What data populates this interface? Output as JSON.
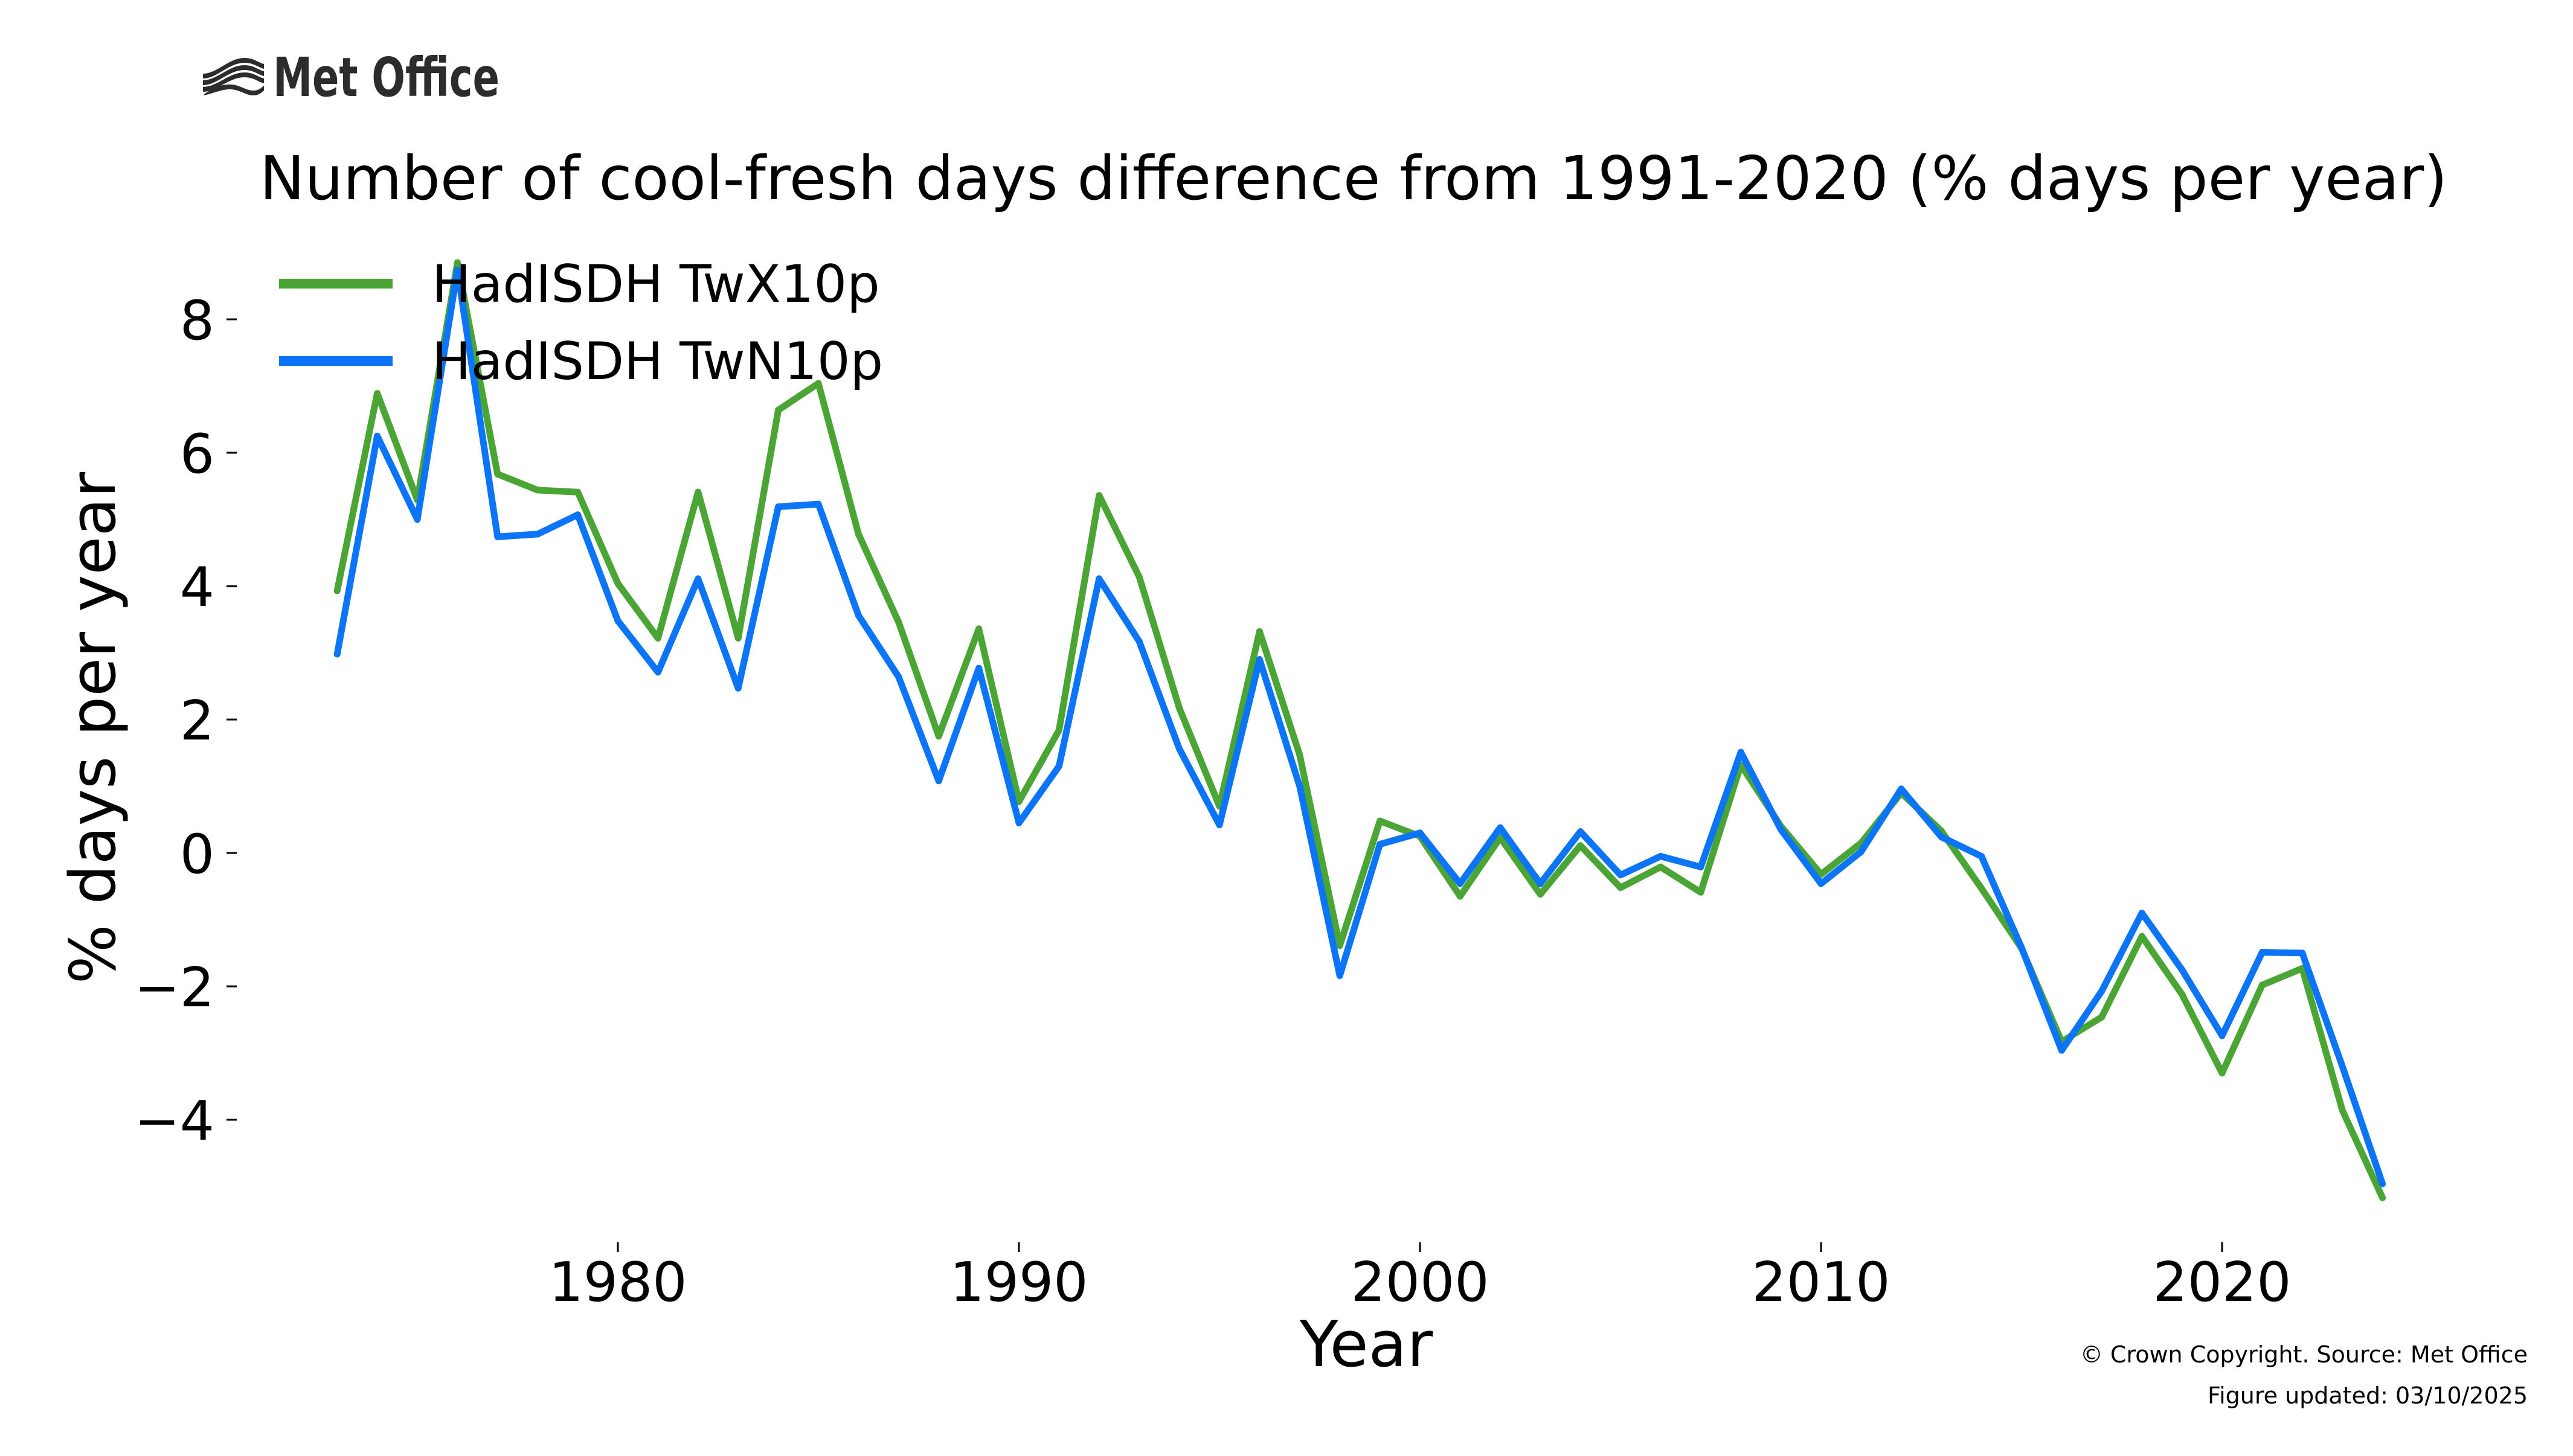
{
  "logo": {
    "text": "Met Office"
  },
  "footer": {
    "copyright": "© Crown Copyright. Source: Met Office",
    "updated": "Figure updated: 03/10/2025"
  },
  "chart_data": {
    "type": "line",
    "title": "Number of cool-fresh days difference from 1991-2020 (% days per year)",
    "xlabel": "Year",
    "ylabel": "% days per year",
    "xlim": [
      1971.0,
      2025.3
    ],
    "ylim": [
      -5.5,
      8.9
    ],
    "grid": false,
    "legend_position": "top-left",
    "x_ticks": [
      1980,
      1990,
      2000,
      2010,
      2020
    ],
    "x_tick_labels": [
      "1980",
      "1990",
      "2000",
      "2010",
      "2020"
    ],
    "y_ticks": [
      8,
      6,
      4,
      2,
      0,
      -2,
      -4
    ],
    "y_tick_labels": [
      "8",
      "6",
      "4",
      "2",
      "0",
      "−2",
      "−4"
    ],
    "x": [
      1973,
      1974,
      1975,
      1976,
      1977,
      1978,
      1979,
      1980,
      1981,
      1982,
      1983,
      1984,
      1985,
      1986,
      1987,
      1988,
      1989,
      1990,
      1991,
      1992,
      1993,
      1994,
      1995,
      1996,
      1997,
      1998,
      1999,
      2000,
      2001,
      2002,
      2003,
      2004,
      2005,
      2006,
      2007,
      2008,
      2009,
      2010,
      2011,
      2012,
      2013,
      2014,
      2015,
      2016,
      2017,
      2018,
      2019,
      2020,
      2021,
      2022,
      2023,
      2024
    ],
    "series": [
      {
        "name": "HadISDH TwX10p",
        "color": "#4aa535",
        "values": [
          3.93,
          6.89,
          5.29,
          8.85,
          5.68,
          5.44,
          5.41,
          4.04,
          3.22,
          5.41,
          3.22,
          6.64,
          7.04,
          4.78,
          3.46,
          1.75,
          3.36,
          0.77,
          1.84,
          5.36,
          4.14,
          2.17,
          0.7,
          3.32,
          1.47,
          -1.39,
          0.48,
          0.25,
          -0.65,
          0.23,
          -0.62,
          0.11,
          -0.52,
          -0.21,
          -0.59,
          1.32,
          0.4,
          -0.32,
          0.15,
          0.9,
          0.33,
          -0.53,
          -1.43,
          -2.83,
          -2.46,
          -1.25,
          -2.12,
          -3.3,
          -1.98,
          -1.73,
          -3.86,
          -5.17
        ]
      },
      {
        "name": "HadISDH TwN10p",
        "color": "#0b74f7",
        "values": [
          2.98,
          6.25,
          5.0,
          8.74,
          4.74,
          4.78,
          5.07,
          3.48,
          2.71,
          4.11,
          2.47,
          5.19,
          5.23,
          3.56,
          2.64,
          1.08,
          2.77,
          0.45,
          1.3,
          4.11,
          3.17,
          1.56,
          0.42,
          2.9,
          1.0,
          -1.84,
          0.13,
          0.3,
          -0.46,
          0.38,
          -0.46,
          0.32,
          -0.33,
          -0.05,
          -0.21,
          1.51,
          0.35,
          -0.46,
          0.02,
          0.96,
          0.24,
          -0.05,
          -1.42,
          -2.96,
          -2.07,
          -0.9,
          -1.75,
          -2.74,
          -1.49,
          -1.5,
          -3.2,
          -4.96
        ]
      }
    ]
  }
}
